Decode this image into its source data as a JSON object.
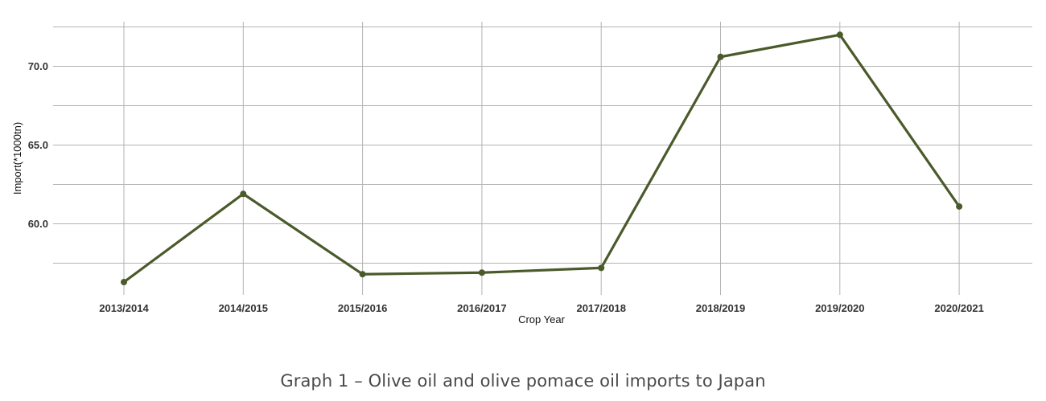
{
  "caption": "Graph 1 – Olive oil and olive pomace oil imports to Japan",
  "chart_data": {
    "type": "line",
    "title": "",
    "xlabel": "Crop Year",
    "ylabel": "Import(*1000tn)",
    "categories": [
      "2013/2014",
      "2014/2015",
      "2015/2016",
      "2016/2017",
      "2017/2018",
      "2018/2019",
      "2019/2020",
      "2020/2021"
    ],
    "series": [
      {
        "values": [
          56.3,
          61.9,
          56.8,
          56.9,
          57.2,
          70.6,
          72.0,
          61.1
        ],
        "color": "#4a5a2a"
      }
    ],
    "ylim": [
      55.0,
      72.5
    ],
    "yticks": [
      "60.0",
      "65.0",
      "70.0"
    ],
    "grid": true,
    "legend": "none"
  }
}
